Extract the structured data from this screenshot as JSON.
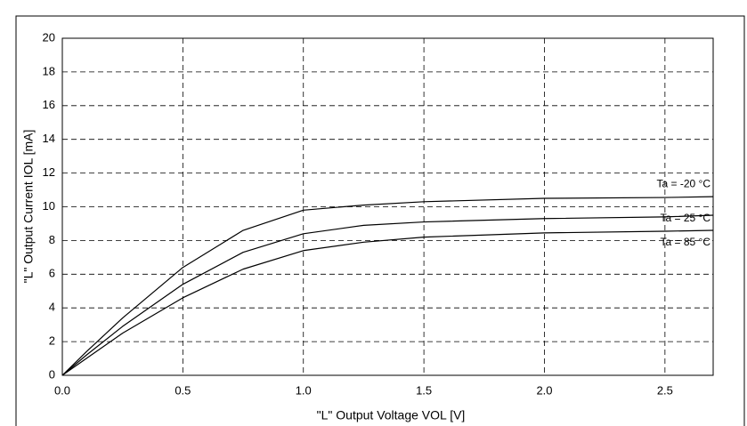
{
  "chart_data": {
    "type": "line",
    "xlabel": "\"L\" Output Voltage VOL [V]",
    "ylabel": "\"L\" Output Current IOL [mA]",
    "x": [
      0,
      0.1,
      0.25,
      0.5,
      0.75,
      1.0,
      1.25,
      1.5,
      2.0,
      2.5,
      2.7
    ],
    "series": [
      {
        "name": "Ta = -20 °C",
        "color": "#000000",
        "values": [
          0,
          1.4,
          3.4,
          6.4,
          8.6,
          9.8,
          10.1,
          10.3,
          10.5,
          10.55,
          10.6
        ]
      },
      {
        "name": "Ta = 25 °C",
        "color": "#000000",
        "values": [
          0,
          1.2,
          2.9,
          5.4,
          7.3,
          8.4,
          8.9,
          9.1,
          9.3,
          9.4,
          9.5
        ]
      },
      {
        "name": "Ta = 85 °C",
        "color": "#000000",
        "values": [
          0,
          1.0,
          2.5,
          4.6,
          6.3,
          7.4,
          7.9,
          8.2,
          8.45,
          8.55,
          8.6
        ]
      }
    ],
    "xlim": [
      0,
      2.7
    ],
    "xticks": [
      {
        "value": 0,
        "label": "0.0"
      },
      0.5,
      {
        "value": 1,
        "label": "1.0"
      },
      1.5,
      {
        "value": 2,
        "label": "2.0"
      },
      2.5
    ],
    "ylim": [
      0,
      20
    ],
    "yticks": [
      0,
      2,
      4,
      6,
      8,
      10,
      12,
      14,
      16,
      18,
      20
    ],
    "grid": true
  }
}
